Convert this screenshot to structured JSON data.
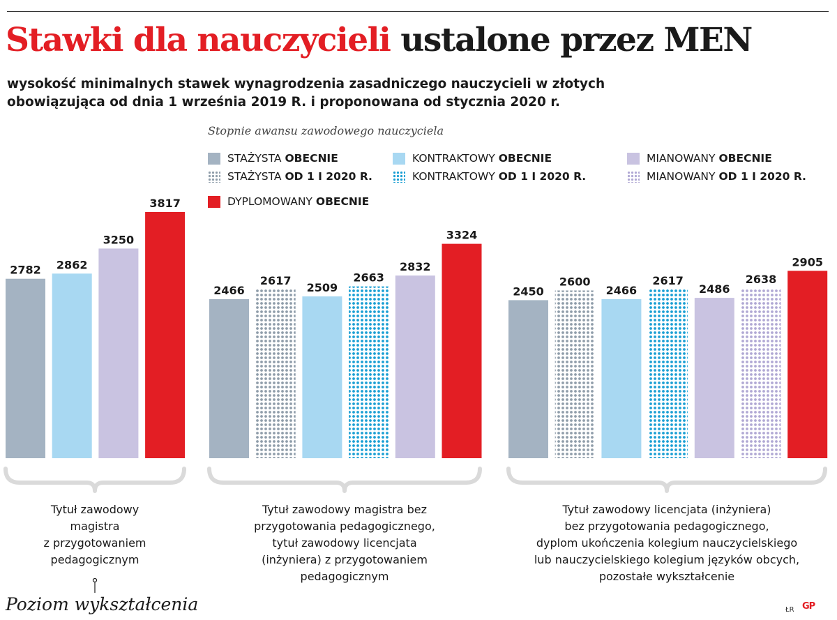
{
  "header": {
    "title_red": "Stawki dla nauczycieli",
    "title_dark": "ustalone przez MEN",
    "subtitle_line1": "wysokość minimalnych stawek wynagrodzenia zasadniczego nauczycieli w złotych",
    "subtitle_line2": "obowiązująca od dnia 1 września 2019 R. i proponowana od stycznia 2020 r."
  },
  "legend": {
    "title": "Stopnie awansu zawodowego nauczyciela",
    "items": [
      {
        "name": "STAŻYSTA",
        "suffix": "OBECNIE",
        "color": "#a4b3c2",
        "pattern": "solid"
      },
      {
        "name": "STAŻYSTA",
        "suffix": "OD 1 I 2020 R.",
        "color": "#8f9daa",
        "pattern": "dots"
      },
      {
        "name": "KONTRAKTOWY",
        "suffix": "OBECNIE",
        "color": "#a8d8f2",
        "pattern": "solid"
      },
      {
        "name": "KONTRAKTOWY",
        "suffix": "OD 1 I 2020 R.",
        "color": "#1a9fd4",
        "pattern": "dots"
      },
      {
        "name": "MIANOWANY",
        "suffix": "OBECNIE",
        "color": "#c9c3e1",
        "pattern": "solid"
      },
      {
        "name": "MIANOWANY",
        "suffix": "OD 1 I 2020 R.",
        "color": "#b0a8d4",
        "pattern": "dots"
      },
      {
        "name": "DYPLOMOWANY",
        "suffix": "OBECNIE",
        "color": "#e31e24",
        "pattern": "solid"
      }
    ]
  },
  "chart_data": {
    "type": "bar",
    "title": "Stawki dla nauczycieli ustalone przez MEN",
    "xlabel": "Poziom wykształcenia",
    "ylabel": "",
    "ylim": [
      0,
      3817
    ],
    "groups": [
      {
        "label": "Tytuł zawodowy\nmagistra\nz przygotowaniem\npedagogicznym",
        "bars": [
          {
            "series": 0,
            "value": 2782
          },
          {
            "series": 2,
            "value": 2862
          },
          {
            "series": 4,
            "value": 3250
          },
          {
            "series": 6,
            "value": 3817
          }
        ]
      },
      {
        "label": "Tytuł zawodowy magistra bez\nprzygotowania pedagogicznego,\ntytuł zawodowy licencjata\n(inżyniera) z przygotowaniem\npedagogicznym",
        "bars": [
          {
            "series": 0,
            "value": 2466
          },
          {
            "series": 1,
            "value": 2617
          },
          {
            "series": 2,
            "value": 2509
          },
          {
            "series": 3,
            "value": 2663
          },
          {
            "series": 4,
            "value": 2832
          },
          {
            "series": 6,
            "value": 3324
          }
        ]
      },
      {
        "label": "Tytuł zawodowy licencjata (inżyniera)\nbez przygotowania pedagogicznego,\ndyplom ukończenia kolegium nauczycielskiego\nlub nauczycielskiego kolegium języków obcych,\npozostałe wykształcenie",
        "bars": [
          {
            "series": 0,
            "value": 2450
          },
          {
            "series": 1,
            "value": 2600
          },
          {
            "series": 2,
            "value": 2466
          },
          {
            "series": 3,
            "value": 2617
          },
          {
            "series": 4,
            "value": 2486
          },
          {
            "series": 5,
            "value": 2638
          },
          {
            "series": 6,
            "value": 2905
          }
        ]
      }
    ]
  },
  "footer": {
    "credit": "ŁR",
    "logo": "GP"
  }
}
